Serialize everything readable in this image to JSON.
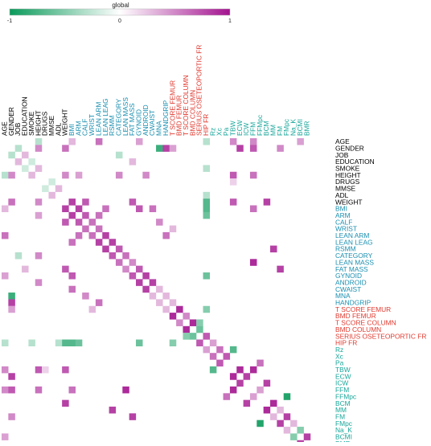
{
  "chart_data": {
    "type": "heatmap",
    "title": "",
    "xlabel": "",
    "ylabel": "",
    "legend": {
      "title": "global",
      "ticks": [
        {
          "value": -1,
          "label": "-1"
        },
        {
          "value": 0,
          "label": "0"
        },
        {
          "value": 1,
          "label": "1"
        }
      ],
      "placement": "top-left",
      "low_color": "#0a9a5a",
      "mid_color": "#ffffff",
      "high_color": "#a3128f"
    },
    "group_colors": {
      "general": "#000000",
      "body": "#1a8fb0",
      "bone": "#e03a30",
      "bia": "#17a69a"
    },
    "variables": [
      {
        "label": "AGE",
        "group": "general"
      },
      {
        "label": "GENDER",
        "group": "general"
      },
      {
        "label": "JOB",
        "group": "general"
      },
      {
        "label": "EDUCATION",
        "group": "general"
      },
      {
        "label": "SMOKE",
        "group": "general"
      },
      {
        "label": "HEIGHT",
        "group": "general"
      },
      {
        "label": "DRUGS",
        "group": "general"
      },
      {
        "label": "MMSE",
        "group": "general"
      },
      {
        "label": "ADL",
        "group": "general"
      },
      {
        "label": "WEIGHT",
        "group": "general"
      },
      {
        "label": "BMI",
        "group": "body"
      },
      {
        "label": "ARM",
        "group": "body"
      },
      {
        "label": "CALF",
        "group": "body"
      },
      {
        "label": "WRIST",
        "group": "body"
      },
      {
        "label": "LEAN ARM",
        "group": "body"
      },
      {
        "label": "LEAN LEAG",
        "group": "body"
      },
      {
        "label": "RSMM",
        "group": "body"
      },
      {
        "label": "CATEGORY",
        "group": "body"
      },
      {
        "label": "LEAN MASS",
        "group": "body"
      },
      {
        "label": "FAT MASS",
        "group": "body"
      },
      {
        "label": "GYNOID",
        "group": "body"
      },
      {
        "label": "ANDROID",
        "group": "body"
      },
      {
        "label": "CWAIST",
        "group": "body"
      },
      {
        "label": "MNA",
        "group": "body"
      },
      {
        "label": "HANDGRIP",
        "group": "body"
      },
      {
        "label": "T SCORE FEMUR",
        "group": "bone"
      },
      {
        "label": "BMD FEMUR",
        "group": "bone"
      },
      {
        "label": "T SCORE COLUMN",
        "group": "bone"
      },
      {
        "label": "BMD COLUMN",
        "group": "bone"
      },
      {
        "label": "SERIUS OSETEOPORTIC FR",
        "group": "bone"
      },
      {
        "label": "HIP FR",
        "group": "bone"
      },
      {
        "label": "Rz",
        "group": "bia"
      },
      {
        "label": "Xc",
        "group": "bia"
      },
      {
        "label": "Pa",
        "group": "bia"
      },
      {
        "label": "TBW",
        "group": "bia"
      },
      {
        "label": "ECW",
        "group": "bia"
      },
      {
        "label": "ICW",
        "group": "bia"
      },
      {
        "label": "FFM",
        "group": "bia"
      },
      {
        "label": "FFMpc",
        "group": "bia"
      },
      {
        "label": "BCM",
        "group": "bia"
      },
      {
        "label": "MM",
        "group": "bia"
      },
      {
        "label": "FM",
        "group": "bia"
      },
      {
        "label": "FMpc",
        "group": "bia"
      },
      {
        "label": "Na_K",
        "group": "bia"
      },
      {
        "label": "BCMI",
        "group": "bia"
      },
      {
        "label": "BMR",
        "group": "bia"
      }
    ],
    "anchor_correlations": [
      {
        "row": "AGE",
        "col": "HEIGHT",
        "value": -0.3
      },
      {
        "row": "AGE",
        "col": "BMI",
        "value": 0.3
      },
      {
        "row": "AGE",
        "col": "LEAN ARM",
        "value": 0.6
      },
      {
        "row": "AGE",
        "col": "GYNOID",
        "value": 0.4
      },
      {
        "row": "AGE",
        "col": "HIP FR",
        "value": -0.3
      },
      {
        "row": "AGE",
        "col": "TBW",
        "value": 0.5
      },
      {
        "row": "AGE",
        "col": "FFM",
        "value": 0.5
      },
      {
        "row": "AGE",
        "col": "BCMI",
        "value": 0.4
      },
      {
        "row": "GENDER",
        "col": "JOB",
        "value": -0.3
      },
      {
        "row": "GENDER",
        "col": "HEIGHT",
        "value": 0.5
      },
      {
        "row": "GENDER",
        "col": "WEIGHT",
        "value": 0.6
      },
      {
        "row": "GENDER",
        "col": "MNA",
        "value": -0.8
      },
      {
        "row": "GENDER",
        "col": "HANDGRIP",
        "value": 0.8
      },
      {
        "row": "GENDER",
        "col": "T SCORE FEMUR",
        "value": 0.4
      },
      {
        "row": "GENDER",
        "col": "ECW",
        "value": 0.8
      },
      {
        "row": "GENDER",
        "col": "FFM",
        "value": 0.7
      },
      {
        "row": "GENDER",
        "col": "FM",
        "value": 0.5
      },
      {
        "row": "JOB",
        "col": "EDUCATION",
        "value": 0.3
      },
      {
        "row": "JOB",
        "col": "CATEGORY",
        "value": -0.3
      },
      {
        "row": "EDUCATION",
        "col": "SMOKE",
        "value": -0.2
      },
      {
        "row": "EDUCATION",
        "col": "FAT MASS",
        "value": 0.3
      },
      {
        "row": "SMOKE",
        "col": "HEIGHT",
        "value": 0.3
      },
      {
        "row": "SMOKE",
        "col": "HIP FR",
        "value": -0.3
      },
      {
        "row": "HEIGHT",
        "col": "WEIGHT",
        "value": 0.5
      },
      {
        "row": "HEIGHT",
        "col": "ARM",
        "value": 0.4
      },
      {
        "row": "HEIGHT",
        "col": "CATEGORY",
        "value": 0.5
      },
      {
        "row": "HEIGHT",
        "col": "ANDROID",
        "value": 0.5
      },
      {
        "row": "HEIGHT",
        "col": "TBW",
        "value": 0.7
      },
      {
        "row": "HEIGHT",
        "col": "FFM",
        "value": 0.6
      },
      {
        "row": "DRUGS",
        "col": "MMSE",
        "value": -0.2
      },
      {
        "row": "DRUGS",
        "col": "TBW",
        "value": 0.2
      },
      {
        "row": "MMSE",
        "col": "ADL",
        "value": 0.3
      },
      {
        "row": "ADL",
        "col": "HIP FR",
        "value": -0.3
      },
      {
        "row": "WEIGHT",
        "col": "BMI",
        "value": 0.8
      },
      {
        "row": "WEIGHT",
        "col": "CALF",
        "value": 0.7
      },
      {
        "row": "WEIGHT",
        "col": "FAT MASS",
        "value": 0.7
      },
      {
        "row": "WEIGHT",
        "col": "HIP FR",
        "value": -0.7
      },
      {
        "row": "WEIGHT",
        "col": "TBW",
        "value": 0.7
      },
      {
        "row": "WEIGHT",
        "col": "BCM",
        "value": 0.8
      },
      {
        "row": "BMI",
        "col": "ARM",
        "value": 0.8
      },
      {
        "row": "BMI",
        "col": "LEAN LEAG",
        "value": 0.6
      },
      {
        "row": "BMI",
        "col": "GYNOID",
        "value": 0.7
      },
      {
        "row": "BMI",
        "col": "CWAIST",
        "value": 0.6
      },
      {
        "row": "BMI",
        "col": "HIP FR",
        "value": -0.7
      },
      {
        "row": "BMI",
        "col": "FFM",
        "value": 0.6
      },
      {
        "row": "ARM",
        "col": "CALF",
        "value": 0.7
      },
      {
        "row": "ARM",
        "col": "LEAN ARM",
        "value": 0.6
      },
      {
        "row": "ARM",
        "col": "HIP FR",
        "value": -0.6
      },
      {
        "row": "CALF",
        "col": "WRIST",
        "value": 0.6
      },
      {
        "row": "CALF",
        "col": "MNA",
        "value": 0.5
      },
      {
        "row": "WRIST",
        "col": "LEAN ARM",
        "value": 0.6
      },
      {
        "row": "WRIST",
        "col": "T SCORE FEMUR",
        "value": 0.3
      },
      {
        "row": "LEAN ARM",
        "col": "LEAN LEAG",
        "value": 0.8
      },
      {
        "row": "LEAN ARM",
        "col": "HANDGRIP",
        "value": 0.6
      },
      {
        "row": "LEAN LEAG",
        "col": "RSMM",
        "value": 0.8
      },
      {
        "row": "RSMM",
        "col": "CATEGORY",
        "value": 0.7
      },
      {
        "row": "RSMM",
        "col": "MM",
        "value": 0.8
      },
      {
        "row": "CATEGORY",
        "col": "LEAN MASS",
        "value": 0.6
      },
      {
        "row": "LEAN MASS",
        "col": "FAT MASS",
        "value": 0.5
      },
      {
        "row": "LEAN MASS",
        "col": "FFM",
        "value": 0.9
      },
      {
        "row": "FAT MASS",
        "col": "GYNOID",
        "value": 0.7
      },
      {
        "row": "FAT MASS",
        "col": "FM",
        "value": 0.8
      },
      {
        "row": "GYNOID",
        "col": "ANDROID",
        "value": 0.8
      },
      {
        "row": "GYNOID",
        "col": "HIP FR",
        "value": -0.6
      },
      {
        "row": "ANDROID",
        "col": "CWAIST",
        "value": 0.8
      },
      {
        "row": "CWAIST",
        "col": "MNA",
        "value": 0.3
      },
      {
        "row": "MNA",
        "col": "HANDGRIP",
        "value": 0.3
      },
      {
        "row": "HANDGRIP",
        "col": "T SCORE FEMUR",
        "value": 0.3
      },
      {
        "row": "T SCORE FEMUR",
        "col": "BMD FEMUR",
        "value": 0.9
      },
      {
        "row": "T SCORE FEMUR",
        "col": "HIP FR",
        "value": -0.5
      },
      {
        "row": "BMD FEMUR",
        "col": "T SCORE COLUMN",
        "value": 0.5
      },
      {
        "row": "T SCORE COLUMN",
        "col": "BMD COLUMN",
        "value": 0.9
      },
      {
        "row": "T SCORE COLUMN",
        "col": "SERIUS OSETEOPORTIC FR",
        "value": -0.5
      },
      {
        "row": "BMD COLUMN",
        "col": "SERIUS OSETEOPORTIC FR",
        "value": -0.6
      },
      {
        "row": "SERIUS OSETEOPORTIC FR",
        "col": "HIP FR",
        "value": 0.7
      },
      {
        "row": "HIP FR",
        "col": "Rz",
        "value": 0.4
      },
      {
        "row": "Rz",
        "col": "Xc",
        "value": 0.6
      },
      {
        "row": "Rz",
        "col": "TBW",
        "value": -0.7
      },
      {
        "row": "Xc",
        "col": "Pa",
        "value": 0.7
      },
      {
        "row": "Pa",
        "col": "FFMpc",
        "value": 0.6
      },
      {
        "row": "TBW",
        "col": "ECW",
        "value": 0.9
      },
      {
        "row": "TBW",
        "col": "FFM",
        "value": 0.9
      },
      {
        "row": "ECW",
        "col": "ICW",
        "value": 0.8
      },
      {
        "row": "ICW",
        "col": "BCM",
        "value": 0.8
      },
      {
        "row": "FFM",
        "col": "FFMpc",
        "value": 0.4
      },
      {
        "row": "FFMpc",
        "col": "FMpc",
        "value": -0.9
      },
      {
        "row": "BCM",
        "col": "MM",
        "value": 0.9
      },
      {
        "row": "MM",
        "col": "FM",
        "value": 0.3
      },
      {
        "row": "FM",
        "col": "FMpc",
        "value": 0.8
      },
      {
        "row": "FMpc",
        "col": "Na_K",
        "value": 0.3
      },
      {
        "row": "Na_K",
        "col": "BCMI",
        "value": -0.5
      },
      {
        "row": "BCMI",
        "col": "BMR",
        "value": 0.8
      }
    ]
  }
}
